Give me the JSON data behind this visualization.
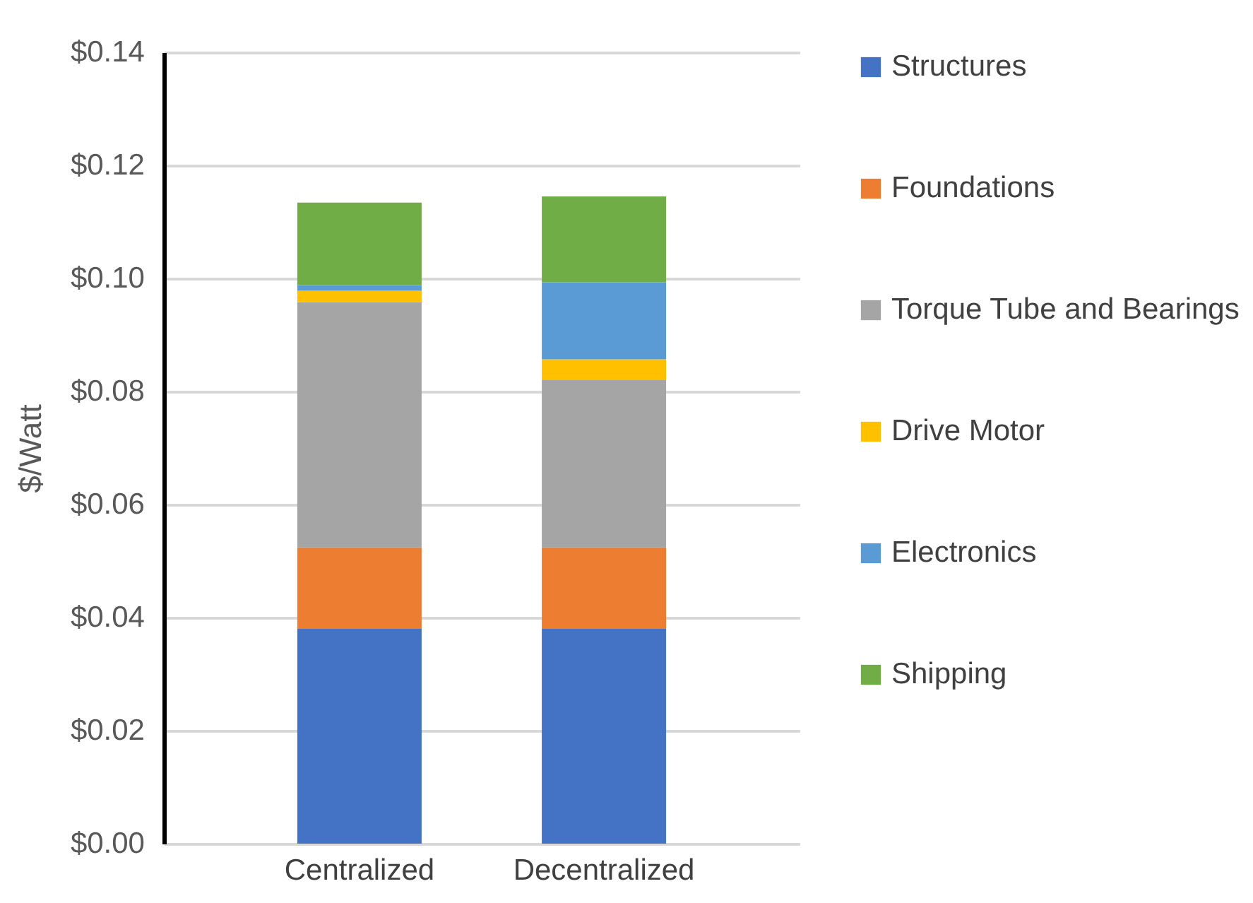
{
  "chart_data": {
    "type": "bar",
    "stacked": true,
    "ylabel": "$/Watt",
    "categories": [
      "Centralized",
      "Decentralized"
    ],
    "series": [
      {
        "name": "Structures",
        "color": "#4472c4",
        "values": [
          0.038,
          0.038
        ]
      },
      {
        "name": "Foundations",
        "color": "#ed7d31",
        "values": [
          0.0144,
          0.0144
        ]
      },
      {
        "name": "Torque Tube and Bearings",
        "color": "#a5a5a5",
        "values": [
          0.0434,
          0.0297
        ]
      },
      {
        "name": "Drive Motor",
        "color": "#ffc000",
        "values": [
          0.002,
          0.0036
        ]
      },
      {
        "name": "Electronics",
        "color": "#5b9bd5",
        "values": [
          0.001,
          0.0136
        ]
      },
      {
        "name": "Shipping",
        "color": "#70ad47",
        "values": [
          0.0146,
          0.0152
        ]
      }
    ],
    "ylim": [
      0,
      0.14
    ],
    "yticks": [
      {
        "value": 0,
        "label": "$0.00"
      },
      {
        "value": 0.02,
        "label": "$0.02"
      },
      {
        "value": 0.04,
        "label": "$0.04"
      },
      {
        "value": 0.06,
        "label": "$0.06"
      },
      {
        "value": 0.08,
        "label": "$0.08"
      },
      {
        "value": 0.1,
        "label": "$0.10"
      },
      {
        "value": 0.12,
        "label": "$0.12"
      },
      {
        "value": 0.14,
        "label": "$0.14"
      }
    ],
    "grid": "y",
    "legend": "right"
  }
}
